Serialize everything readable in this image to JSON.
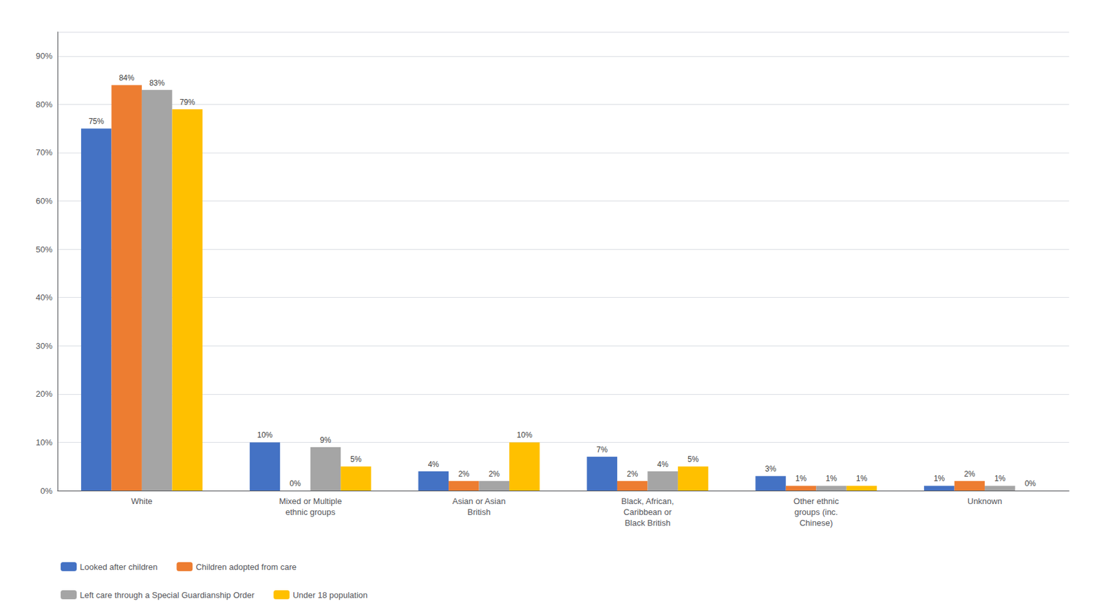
{
  "chart_data": {
    "type": "bar",
    "categories": [
      "White",
      "Mixed or Multiple\nethnic groups",
      "Asian or Asian\nBritish",
      "Black, African,\nCaribbean or\nBlack British",
      "Other ethnic\ngroups (inc.\nChinese)",
      "Unknown"
    ],
    "series": [
      {
        "name": "Looked after children",
        "color": "#4472C4",
        "values": [
          75,
          10,
          4,
          7,
          3,
          1
        ],
        "value_labels": [
          "75%",
          "10%",
          "4%",
          "7%",
          "3%",
          "1%"
        ]
      },
      {
        "name": "Children adopted from care",
        "color": "#ED7D31",
        "values": [
          84,
          0,
          2,
          2,
          1,
          2
        ],
        "value_labels": [
          "84%",
          "0%",
          "2%",
          "2%",
          "1%",
          "2%"
        ]
      },
      {
        "name": "Left care through a Special Guardianship Order",
        "color": "#A5A5A5",
        "values": [
          83,
          9,
          2,
          4,
          1,
          1
        ],
        "value_labels": [
          "83%",
          "9%",
          "2%",
          "4%",
          "1%",
          "1%"
        ]
      },
      {
        "name": "Under 18 population",
        "color": "#FFC000",
        "values": [
          79,
          5,
          10,
          5,
          1,
          0
        ],
        "value_labels": [
          "79%",
          "5%",
          "10%",
          "5%",
          "1%",
          "0%"
        ]
      }
    ],
    "ylim": [
      0,
      95
    ],
    "yticks": [
      {
        "value": 0,
        "label": "0%"
      },
      {
        "value": 10,
        "label": "10%"
      },
      {
        "value": 20,
        "label": "20%"
      },
      {
        "value": 30,
        "label": "30%"
      },
      {
        "value": 40,
        "label": "40%"
      },
      {
        "value": 50,
        "label": "50%"
      },
      {
        "value": 60,
        "label": "60%"
      },
      {
        "value": 70,
        "label": "70%"
      },
      {
        "value": 80,
        "label": "80%"
      },
      {
        "value": 90,
        "label": "90%"
      }
    ],
    "grid": true,
    "data_labels": true,
    "legend": "lower left"
  }
}
